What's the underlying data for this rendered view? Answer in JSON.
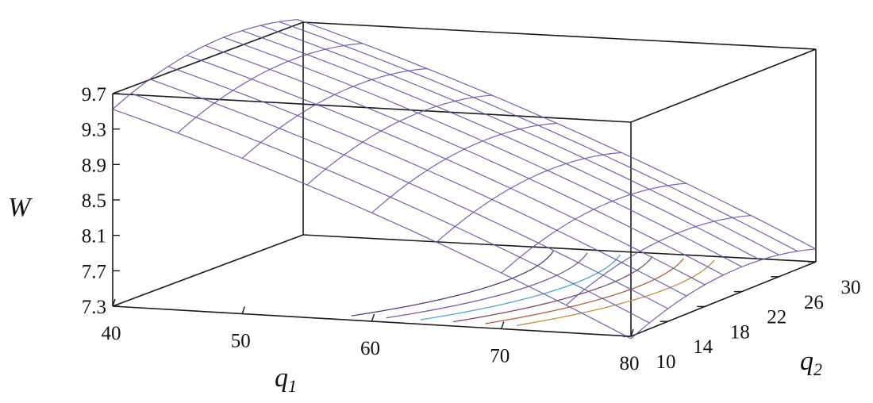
{
  "chart_data": {
    "type": "surface3d",
    "title": "",
    "zlabel": "W",
    "xlabel": {
      "main": "q",
      "sub": "1"
    },
    "ylabel": {
      "main": "q",
      "sub": "2"
    },
    "x_ticks": [
      "40",
      "50",
      "60",
      "70",
      "80"
    ],
    "y_ticks": [
      "10",
      "14",
      "18",
      "22",
      "26",
      "30"
    ],
    "z_ticks": [
      "7.3",
      "7.7",
      "8.1",
      "8.5",
      "8.9",
      "9.3",
      "9.7"
    ],
    "xlim": [
      40,
      80
    ],
    "ylim": [
      10,
      30
    ],
    "zlim": [
      7.3,
      9.7
    ],
    "surface": {
      "q1": [
        40,
        45,
        50,
        55,
        60,
        65,
        70,
        75,
        80
      ],
      "q2": [
        10,
        12,
        14,
        16,
        18,
        20,
        22,
        24,
        26,
        28,
        30
      ],
      "W_approx": "peak ≈ 9.8 near q1=40, q2≈22; decreasing toward ≈ 7.6 at q1=80"
    },
    "mesh_color": "#5a56a8",
    "contour_colors": [
      "#5a3a6e",
      "#7a5aa0",
      "#4aa8c8",
      "#7a4a6a",
      "#b06040",
      "#c09040"
    ],
    "grid": false,
    "legend": "none"
  }
}
